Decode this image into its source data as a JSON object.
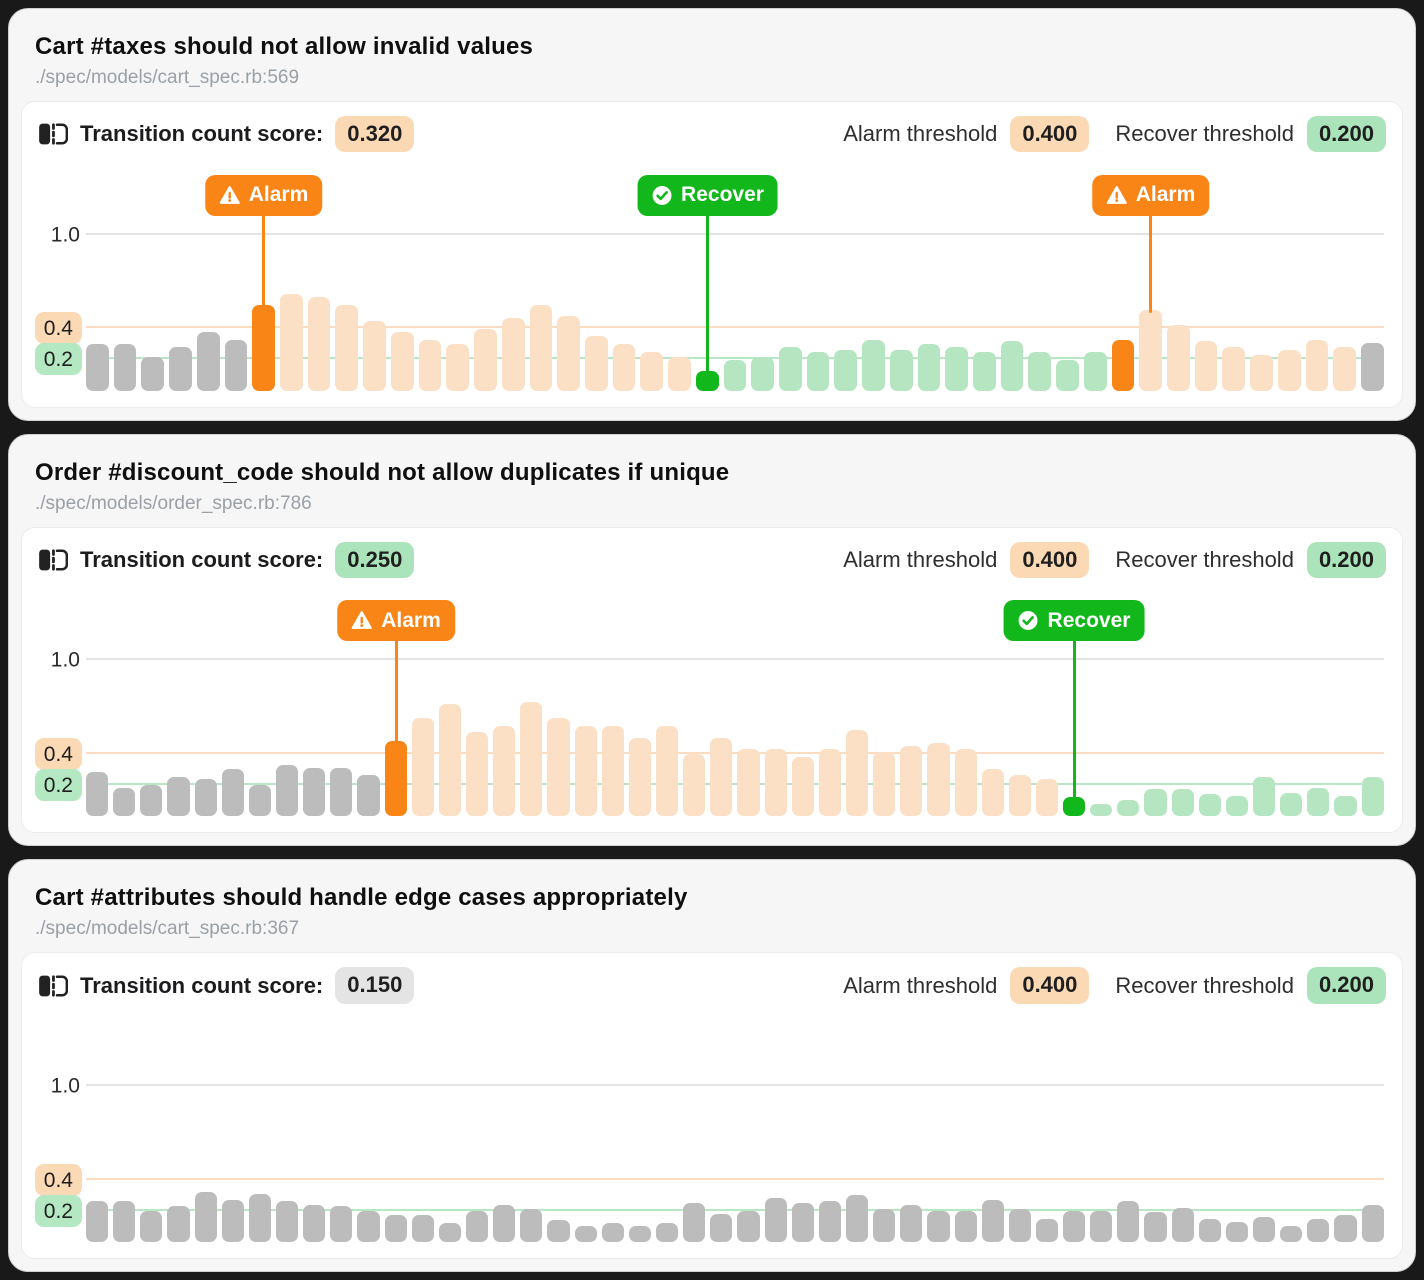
{
  "shared": {
    "score_label": "Transition count score:",
    "alarm_threshold_label": "Alarm threshold",
    "recover_threshold_label": "Recover threshold",
    "alarm_marker_label": "Alarm",
    "recover_marker_label": "Recover",
    "icons": {
      "score_icon": "transition-panel-icon",
      "alarm_icon": "warning-triangle-icon",
      "recover_icon": "check-circle-icon"
    },
    "colors": {
      "alarm": "#fa8517",
      "alarm_soft": "#fbe0c6",
      "recover": "#12b71c",
      "recover_soft": "#b5e6c1",
      "baseline_bar": "#bcbcbc",
      "neutral_badge": "#e4e4e4"
    },
    "y_ticks": [
      {
        "label": "1.0",
        "value": 1.0,
        "tone": "plain"
      },
      {
        "label": "0.4",
        "value": 0.4,
        "tone": "alarm"
      },
      {
        "label": "0.2",
        "value": 0.2,
        "tone": "recover"
      }
    ],
    "state_legend": {
      "g": "baseline",
      "A": "alarm-event",
      "a": "alarm-region",
      "R": "recover-event",
      "r": "recover-region"
    }
  },
  "cards": [
    {
      "title": "Cart #taxes should not allow invalid values",
      "path": "./spec/models/cart_spec.rb:569",
      "score": "0.320",
      "score_tone": "alarm",
      "alarm_threshold": "0.400",
      "recover_threshold": "0.200",
      "chart_data": {
        "type": "bar",
        "ylim": [
          0,
          1.0
        ],
        "gridlines": [
          1.0,
          0.4,
          0.2
        ],
        "values": [
          0.3,
          0.3,
          0.22,
          0.28,
          0.38,
          0.33,
          0.55,
          0.62,
          0.6,
          0.55,
          0.45,
          0.38,
          0.33,
          0.3,
          0.4,
          0.47,
          0.55,
          0.48,
          0.35,
          0.3,
          0.25,
          0.22,
          0.13,
          0.2,
          0.22,
          0.28,
          0.25,
          0.26,
          0.33,
          0.26,
          0.3,
          0.28,
          0.25,
          0.32,
          0.25,
          0.2,
          0.25,
          0.33,
          0.52,
          0.42,
          0.32,
          0.28,
          0.23,
          0.26,
          0.33,
          0.28,
          0.31
        ],
        "states": "ggggggAaaaaaaaaaaaaaaaRrrrrrrrrrrrrrrAaaaaaaaa",
        "markers": [
          {
            "type": "alarm",
            "index": 6
          },
          {
            "type": "recover",
            "index": 22
          },
          {
            "type": "alarm",
            "index": 38
          }
        ]
      }
    },
    {
      "title": "Order #discount_code should not allow duplicates if unique",
      "path": "./spec/models/order_spec.rb:786",
      "score": "0.250",
      "score_tone": "recover",
      "alarm_threshold": "0.400",
      "recover_threshold": "0.200",
      "chart_data": {
        "type": "bar",
        "ylim": [
          0,
          1.0
        ],
        "gridlines": [
          1.0,
          0.4,
          0.2
        ],
        "values": [
          0.28,
          0.18,
          0.2,
          0.25,
          0.24,
          0.3,
          0.2,
          0.33,
          0.31,
          0.31,
          0.26,
          0.48,
          0.63,
          0.72,
          0.54,
          0.58,
          0.73,
          0.63,
          0.58,
          0.58,
          0.5,
          0.58,
          0.4,
          0.5,
          0.43,
          0.43,
          0.38,
          0.43,
          0.55,
          0.41,
          0.45,
          0.47,
          0.43,
          0.3,
          0.26,
          0.24,
          0.12,
          0.08,
          0.1,
          0.17,
          0.17,
          0.14,
          0.13,
          0.25,
          0.15,
          0.18,
          0.13,
          0.25
        ],
        "states": "gggggggggggAaaaaaaaaaaaaaaaaaaaaaaaaRrrrrrrrrrrr",
        "markers": [
          {
            "type": "alarm",
            "index": 11
          },
          {
            "type": "recover",
            "index": 36
          }
        ]
      }
    },
    {
      "title": "Cart #attributes should handle edge cases appropriately",
      "path": "./spec/models/cart_spec.rb:367",
      "score": "0.150",
      "score_tone": "neutral",
      "alarm_threshold": "0.400",
      "recover_threshold": "0.200",
      "chart_data": {
        "type": "bar",
        "ylim": [
          0,
          1.0
        ],
        "gridlines": [
          1.0,
          0.4,
          0.2
        ],
        "values": [
          0.26,
          0.26,
          0.2,
          0.23,
          0.32,
          0.27,
          0.31,
          0.26,
          0.24,
          0.23,
          0.2,
          0.17,
          0.17,
          0.12,
          0.2,
          0.24,
          0.21,
          0.14,
          0.1,
          0.12,
          0.1,
          0.12,
          0.25,
          0.18,
          0.2,
          0.28,
          0.25,
          0.26,
          0.3,
          0.21,
          0.24,
          0.2,
          0.2,
          0.27,
          0.21,
          0.15,
          0.2,
          0.2,
          0.26,
          0.19,
          0.22,
          0.15,
          0.13,
          0.16,
          0.1,
          0.15,
          0.17,
          0.24
        ],
        "states": "gggggggggggggggggggggggggggggggggggggggggggggggg",
        "markers": []
      }
    }
  ]
}
